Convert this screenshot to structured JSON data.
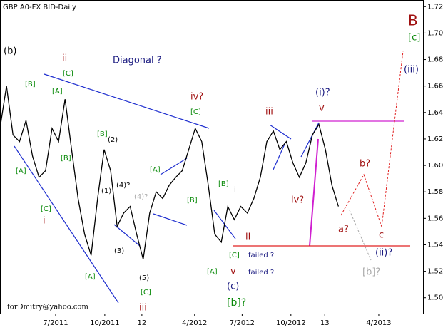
{
  "chart_data": {
    "type": "line",
    "title": "GBP A0-FX BID-Daily",
    "footer": "forDmitry@yahoo.com",
    "color": "#000000",
    "values": [
      1.628,
      1.66,
      1.623,
      1.618,
      1.634,
      1.607,
      1.591,
      1.596,
      1.628,
      1.618,
      1.65,
      1.612,
      1.575,
      1.548,
      1.532,
      1.575,
      1.612,
      1.596,
      1.554,
      1.564,
      1.569,
      1.548,
      1.529,
      1.564,
      1.58,
      1.575,
      1.585,
      1.591,
      1.596,
      1.612,
      1.628,
      1.618,
      1.585,
      1.548,
      1.542,
      1.569,
      1.559,
      1.569,
      1.564,
      1.575,
      1.591,
      1.618,
      1.626,
      1.612,
      1.618,
      1.602,
      1.591,
      1.602,
      1.623,
      1.631,
      1.612,
      1.585,
      1.569
    ],
    "xlim": [
      0,
      65
    ],
    "xticks": [
      {
        "value": 8.55,
        "label": "7/2011"
      },
      {
        "value": 16.1,
        "label": "10/2011"
      },
      {
        "value": 21.8,
        "label": "12"
      },
      {
        "value": 29.9,
        "label": "4/2012"
      },
      {
        "value": 37.2,
        "label": "7/2012"
      },
      {
        "value": 44.7,
        "label": "10/2012"
      },
      {
        "value": 49.9,
        "label": "13"
      },
      {
        "value": 58.2,
        "label": "4/2013"
      }
    ],
    "ylim": [
      1.488,
      1.725
    ],
    "yticks": [
      {
        "value": 1.5,
        "label": "1.50"
      },
      1.52,
      1.54,
      1.56,
      1.58,
      {
        "value": 1.6,
        "label": "1.60"
      },
      1.62,
      1.64,
      1.66,
      1.68,
      {
        "value": 1.7,
        "label": "1.70"
      },
      1.72
    ],
    "annotations": [
      "[B]",
      "[A]",
      "[C]",
      "[B]",
      "[B]",
      "[A]",
      "[C]",
      "[A]",
      "[A]",
      "[B]",
      "[C]",
      "[B]",
      "[C]",
      "[A]",
      "[C]",
      "[c]",
      "[b]?",
      "(b)",
      "(2)",
      "(1)",
      "(4)?",
      "(4)?",
      "(3)",
      "(5)",
      "i",
      "(c)",
      "(i)?",
      "(iii)",
      "(ii)?",
      "failed ?",
      "failed ?",
      "Diagonal ?",
      "ii",
      "i",
      "iii",
      "iv?",
      "iii",
      "v",
      "iv?",
      "ii",
      "v",
      "b?",
      "a?",
      "c",
      "B",
      "[b]?"
    ]
  }
}
